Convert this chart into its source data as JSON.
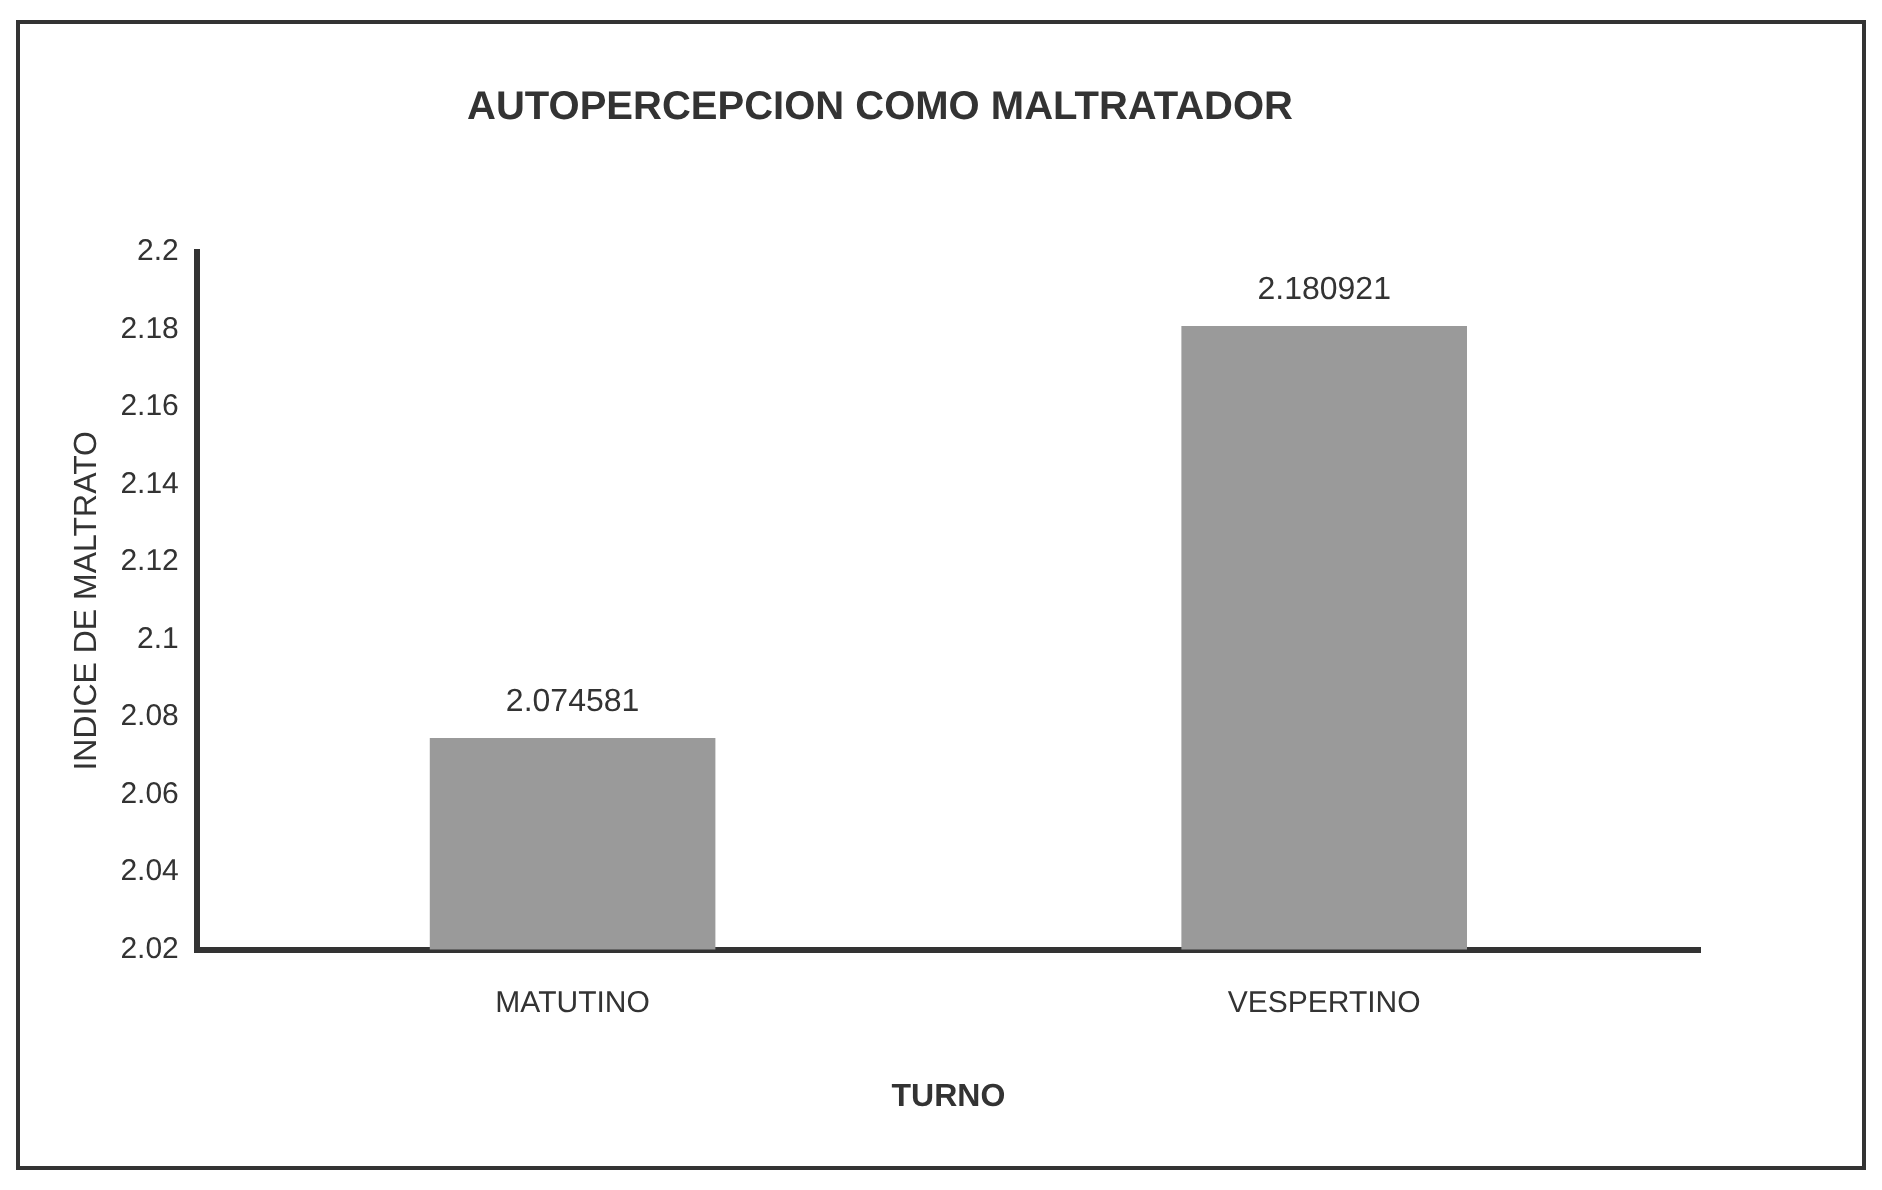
{
  "chart_data": {
    "type": "bar",
    "title": "AUTOPERCEPCION COMO MALTRATADOR",
    "xlabel": "TURNO",
    "ylabel": "INDICE DE MALTRATO",
    "categories": [
      "MATUTINO",
      "VESPERTINO"
    ],
    "values": [
      2.074581,
      2.180921
    ],
    "color": "#9a9a9a",
    "ylim": [
      2.02,
      2.2
    ],
    "yticks": [
      2.02,
      2.04,
      2.06,
      2.08,
      2.1,
      2.12,
      2.14,
      2.16,
      2.18,
      2.2
    ],
    "grid": false,
    "legend": false,
    "data_labels": true
  }
}
